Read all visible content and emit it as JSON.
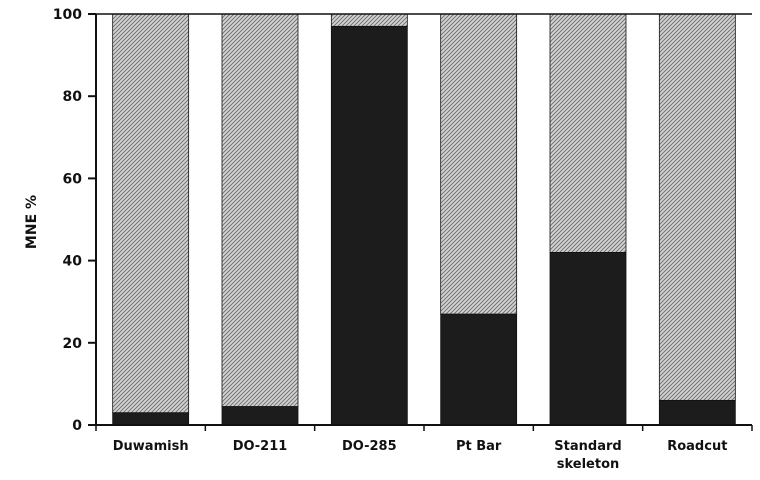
{
  "chart_data": {
    "type": "bar",
    "stacked": true,
    "percent_stacked": true,
    "title": "",
    "xlabel": "",
    "ylabel": "MNE %",
    "ylim": [
      0,
      100
    ],
    "yticks": [
      0,
      20,
      40,
      60,
      80,
      100
    ],
    "grid": false,
    "categories": [
      "Duwamish",
      "DO-211",
      "DO-285",
      "Pt Bar",
      "Standard skeleton",
      "Roadcut"
    ],
    "category_lines": [
      [
        "Duwamish"
      ],
      [
        "DO-211"
      ],
      [
        "DO-285"
      ],
      [
        "Pt Bar"
      ],
      [
        "Standard",
        "skeleton"
      ],
      [
        "Roadcut"
      ]
    ],
    "series": [
      {
        "values": [
          3,
          4.5,
          97,
          27,
          42,
          6
        ],
        "color": "#1c1c1c"
      },
      {
        "values": [
          97,
          95.5,
          3,
          73,
          58,
          94
        ],
        "color": "#b8b8b8",
        "pattern": "hatched"
      }
    ]
  }
}
